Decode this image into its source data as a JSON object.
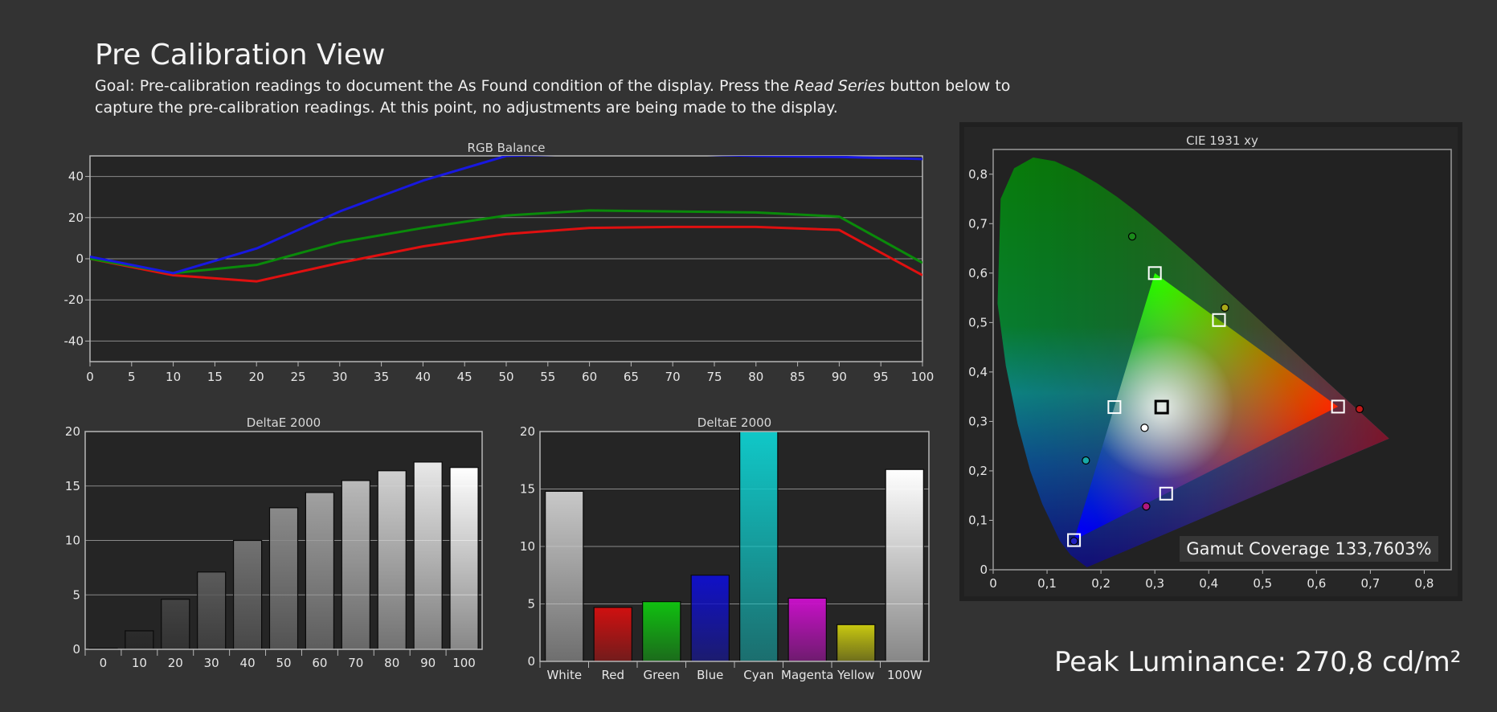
{
  "page": {
    "title": "Pre Calibration View",
    "goal_prefix": "Goal: Pre-calibration readings to document the As Found condition of the display. Press the ",
    "goal_emphasis": "Read Series",
    "goal_suffix": " button below to capture the pre-calibration readings. At this point, no adjustments are being made to the display.",
    "peak_luminance": "Peak Luminance: 270,8 cd/m²",
    "gamut_coverage": "Gamut Coverage 133,7603%"
  },
  "colors": {
    "background": "#333333",
    "plot_bg": "#252525",
    "red": "#e01010",
    "green": "#0a8a0a",
    "blue": "#1818e0"
  },
  "chart_data": [
    {
      "id": "rgb",
      "type": "line",
      "title": "RGB Balance",
      "xlim": [
        0,
        100
      ],
      "ylim": [
        -50,
        50
      ],
      "xticks": [
        "0",
        "5",
        "10",
        "15",
        "20",
        "25",
        "30",
        "35",
        "40",
        "45",
        "50",
        "55",
        "60",
        "65",
        "70",
        "75",
        "80",
        "85",
        "90",
        "95",
        "100"
      ],
      "yticks": [
        "-40",
        "-20",
        "0",
        "20",
        "40"
      ],
      "grid": true,
      "series": [
        {
          "color": "red",
          "x": [
            0,
            10,
            20,
            30,
            40,
            50,
            60,
            70,
            80,
            90,
            100
          ],
          "y": [
            0,
            -8,
            -11,
            -2,
            6,
            12,
            15,
            15.5,
            15.5,
            14,
            -8
          ]
        },
        {
          "color": "green",
          "x": [
            0,
            10,
            20,
            30,
            40,
            50,
            60,
            70,
            80,
            90,
            100
          ],
          "y": [
            0,
            -7,
            -3,
            8,
            15,
            21,
            23.5,
            23,
            22.5,
            20.5,
            -2
          ]
        },
        {
          "color": "blue",
          "x": [
            0,
            10,
            20,
            30,
            40,
            50,
            60,
            70,
            80,
            90,
            100
          ],
          "y": [
            1,
            -7,
            5,
            23,
            38,
            50,
            51,
            51,
            50,
            49.5,
            48.5
          ]
        }
      ]
    },
    {
      "id": "grey",
      "type": "bar",
      "title": "DeltaE 2000",
      "categories": [
        "0",
        "10",
        "20",
        "30",
        "40",
        "50",
        "60",
        "70",
        "80",
        "90",
        "100"
      ],
      "values": [
        0.1,
        1.7,
        4.6,
        7.1,
        10,
        13,
        14.4,
        15.5,
        16.4,
        17.2,
        16.7
      ],
      "ylim": [
        0,
        20
      ],
      "yticks": [
        "0",
        "5",
        "10",
        "15",
        "20"
      ],
      "grid": true
    },
    {
      "id": "color",
      "type": "bar",
      "title": "DeltaE 2000",
      "categories": [
        "White",
        "Red",
        "Green",
        "Blue",
        "Cyan",
        "Magenta",
        "Yellow",
        "100W"
      ],
      "values": [
        14.8,
        4.7,
        5.2,
        7.5,
        20,
        5.5,
        3.2,
        16.7
      ],
      "bar_colors": [
        "#c8c8c8",
        "#d01010",
        "#10c010",
        "#1010c8",
        "#10c8c8",
        "#c810c8",
        "#c8c810",
        "#ffffff"
      ],
      "ylim": [
        0,
        20
      ],
      "yticks": [
        "0",
        "5",
        "10",
        "15",
        "20"
      ],
      "grid": true
    },
    {
      "id": "cie",
      "type": "scatter",
      "title": "CIE 1931 xy",
      "xlim": [
        0,
        0.85
      ],
      "ylim": [
        0,
        0.85
      ],
      "xticks": [
        "0",
        "0,1",
        "0,2",
        "0,3",
        "0,4",
        "0,5",
        "0,6",
        "0,7",
        "0,8"
      ],
      "yticks": [
        "0",
        "0,1",
        "0,2",
        "0,3",
        "0,4",
        "0,5",
        "0,6",
        "0,7",
        "0,8"
      ],
      "targets": [
        {
          "name": "Red",
          "x": 0.64,
          "y": 0.33
        },
        {
          "name": "Green",
          "x": 0.3,
          "y": 0.6
        },
        {
          "name": "Blue",
          "x": 0.15,
          "y": 0.06
        },
        {
          "name": "Cyan",
          "x": 0.225,
          "y": 0.329
        },
        {
          "name": "Magenta",
          "x": 0.321,
          "y": 0.154
        },
        {
          "name": "Yellow",
          "x": 0.419,
          "y": 0.505
        },
        {
          "name": "White",
          "x": 0.3127,
          "y": 0.329
        }
      ],
      "measured": [
        {
          "name": "Red",
          "x": 0.68,
          "y": 0.325,
          "color": "#c01818"
        },
        {
          "name": "Green",
          "x": 0.258,
          "y": 0.674,
          "color": "#1a8a1a"
        },
        {
          "name": "Blue",
          "x": 0.15,
          "y": 0.058,
          "color": "#2020c0"
        },
        {
          "name": "Cyan",
          "x": 0.172,
          "y": 0.221,
          "color": "#18a8a8"
        },
        {
          "name": "Magenta",
          "x": 0.284,
          "y": 0.128,
          "color": "#b01880"
        },
        {
          "name": "Yellow",
          "x": 0.43,
          "y": 0.53,
          "color": "#a8a818"
        },
        {
          "name": "White",
          "x": 0.281,
          "y": 0.287,
          "color": "#ffffff"
        }
      ]
    }
  ]
}
